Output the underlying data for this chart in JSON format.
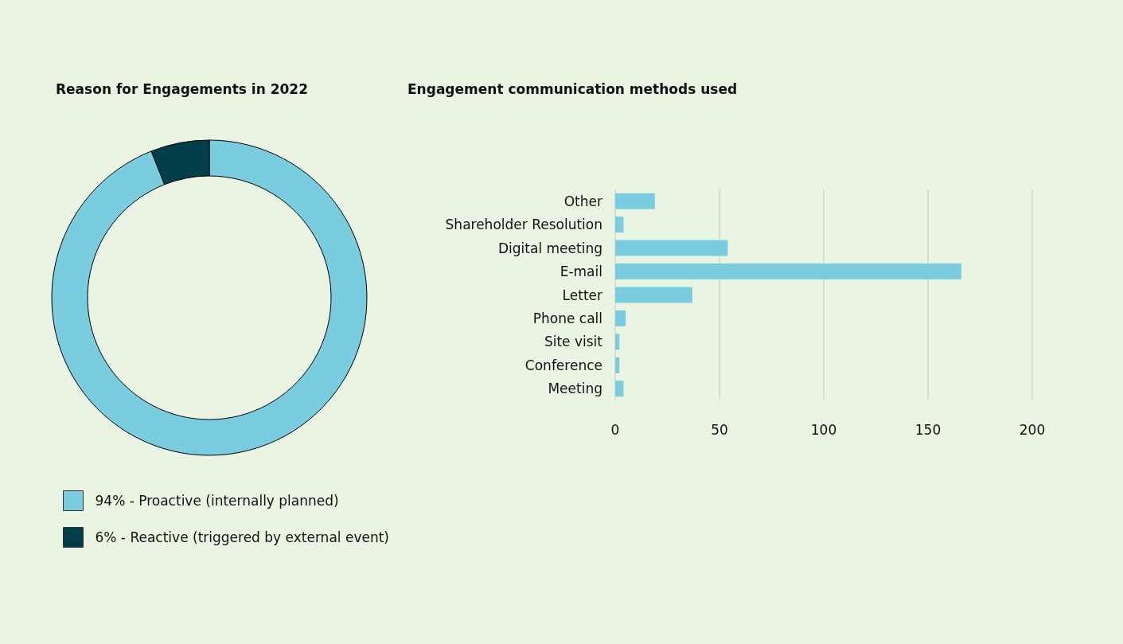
{
  "chart_data": [
    {
      "type": "donut",
      "title": "Reason for Engagements in 2022",
      "categories": [
        "94% - Proactive (internally planned)",
        "6% - Reactive (triggered by external event)"
      ],
      "values": [
        94,
        6
      ],
      "colors": [
        "#7acddf",
        "#003f4a"
      ],
      "legend": "bottom"
    },
    {
      "type": "bar",
      "title": "Engagement communication methods used",
      "orientation": "horizontal",
      "categories": [
        "Other",
        "Shareholder Resolution",
        "Digital meeting",
        "E-mail",
        "Letter",
        "Phone call",
        "Site visit",
        "Conference",
        "Meeting"
      ],
      "values": [
        19,
        4,
        54,
        166,
        37,
        5,
        2,
        2,
        4
      ],
      "color": "#7acddf",
      "xlim": [
        0,
        200
      ],
      "xticks": [
        0,
        50,
        100,
        150,
        200
      ],
      "grid": "x",
      "legend": false
    }
  ]
}
